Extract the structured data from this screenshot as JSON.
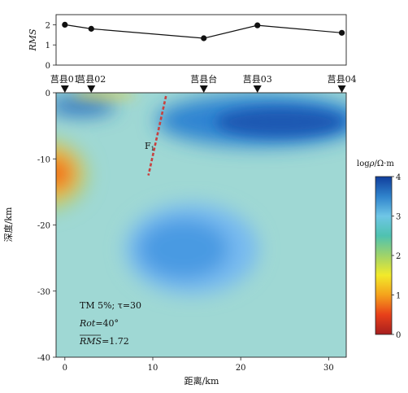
{
  "chart_data": [
    {
      "type": "line",
      "ylabel": "RMS",
      "ylim": [
        0,
        2.5
      ],
      "yticks": [
        0,
        1,
        2
      ],
      "x": [
        0,
        3,
        15.8,
        21.9,
        31.5
      ],
      "values": [
        2.0,
        1.8,
        1.33,
        1.97,
        1.6
      ],
      "stations": [
        {
          "name": "莒县01",
          "x": 0
        },
        {
          "name": "莒县02",
          "x": 3
        },
        {
          "name": "莒县台",
          "x": 15.8
        },
        {
          "name": "莒县03",
          "x": 21.9
        },
        {
          "name": "莒县04",
          "x": 31.5
        }
      ]
    },
    {
      "type": "heatmap",
      "xlabel": "距离/km",
      "ylabel": "深度/km",
      "xlim": [
        -1,
        32
      ],
      "ylim": [
        0,
        -40
      ],
      "xticks": [
        0,
        10,
        20,
        30
      ],
      "yticks": [
        0,
        -10,
        -20,
        -30,
        -40
      ],
      "fault_label": "F",
      "fault_subscript": "1",
      "fault_line": [
        [
          11.5,
          -0.5
        ],
        [
          9.5,
          -12.5
        ]
      ],
      "annotations": {
        "line1": "TM 5%; τ=30",
        "rot_name": "Rot",
        "rot_value": "=40°",
        "rms_name": "RMS",
        "rms_value": "=1.72"
      },
      "colorbar": {
        "label": "log",
        "label_symbol": "ρ",
        "label_unit": "/Ω·m",
        "range": [
          0,
          4
        ],
        "ticks": [
          0,
          1,
          2,
          3,
          4
        ],
        "colors": [
          "#a61e1e",
          "#e8401a",
          "#f5a21c",
          "#f2ea2a",
          "#9fd36a",
          "#4fc2b0",
          "#6fc6e6",
          "#2f83cc",
          "#103e9c"
        ]
      }
    }
  ]
}
